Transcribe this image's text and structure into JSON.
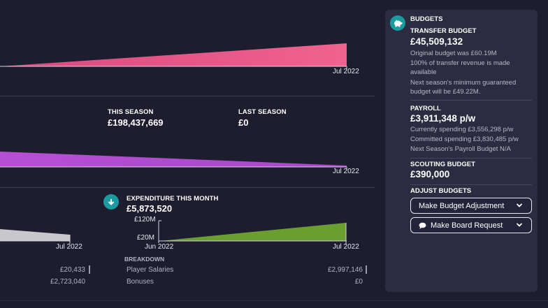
{
  "charts": {
    "top": {
      "date_label": "Jul 2022"
    },
    "middle": {
      "this_season_label": "THIS SEASON",
      "this_season_value": "£198,437,669",
      "last_season_label": "LAST SEASON",
      "last_season_value": "£0",
      "date_label": "Jul 2022"
    },
    "bottom_left": {
      "date_label": "Jul 2022"
    },
    "expenditure": {
      "title": "EXPENDITURE THIS MONTH",
      "value": "£5,873,520",
      "y_ticks": [
        "£120M",
        "£20M"
      ],
      "x_start": "Jun 2022",
      "x_end": "Jul 2022",
      "colors": {
        "fill": "#6a9f2f"
      }
    }
  },
  "breakdown": {
    "title": "BREAKDOWN",
    "left_values": [
      "£20,433",
      "£2,723,040"
    ],
    "rows": [
      {
        "label": "Player Salaries",
        "value": "£2,997,146"
      },
      {
        "label": "Bonuses",
        "value": "£0"
      }
    ]
  },
  "budgets": {
    "header": "BUDGETS",
    "transfer": {
      "title": "TRANSFER BUDGET",
      "value": "£45,509,132",
      "lines": [
        "Original budget was £60.19M",
        "100% of transfer revenue is made available",
        "Next season's minimum guaranteed budget will be £49.22M."
      ]
    },
    "payroll": {
      "title": "PAYROLL",
      "value": "£3,911,348 p/w",
      "lines": [
        "Currently spending £3,556,298 p/w",
        "Committed spending £3,830,485 p/w",
        "Next Season's Payroll Budget N/A"
      ]
    },
    "scouting": {
      "title": "SCOUTING BUDGET",
      "value": "£390,000"
    },
    "adjust": {
      "title": "ADJUST BUDGETS",
      "budget_adjustment": "Make Budget Adjustment",
      "board_request": "Make Board Request"
    }
  },
  "colors": {
    "background": "#1d1d2f",
    "panel": "#2b2c3f",
    "accent_teal": "#1b9aa0",
    "pink": "#ee5d8e",
    "purple": "#b24fd0",
    "gray_fill": "#c7c7cc",
    "green": "#6a9f2f"
  },
  "icons": [
    "piggy-bank-icon",
    "download-arrow-icon",
    "chevron-down-icon",
    "chat-bubble-icon"
  ]
}
